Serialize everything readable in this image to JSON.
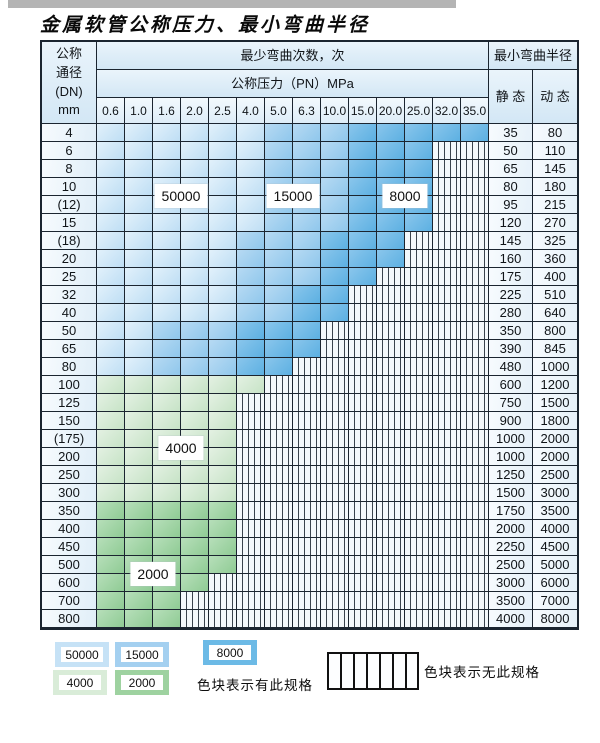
{
  "title": "金属软管公称压力、最小弯曲半径",
  "table": {
    "corner_header": "公称\n通径\n(DN)\nmm",
    "cycles_header": "最少弯曲次数，次",
    "pressure_header": "公称压力（PN）MPa",
    "radius_header": "最小弯曲半径",
    "static_header": "静 态",
    "dynamic_header": "动 态"
  },
  "chart_data": {
    "type": "heatmap",
    "title": "金属软管公称压力、最小弯曲半径",
    "x_label": "公称压力（PN）MPa",
    "y_label": "公称通径(DN) mm",
    "value_label": "最少弯曲次数，次",
    "pressure_columns": [
      "0.6",
      "1.0",
      "1.6",
      "2.0",
      "2.5",
      "4.0",
      "5.0",
      "6.3",
      "10.0",
      "15.0",
      "20.0",
      "25.0",
      "32.0",
      "35.0"
    ],
    "code_meaning": {
      "A": 50000,
      "B": 15000,
      "C": 8000,
      "D": 4000,
      "E": 2000,
      "X": "无此规格"
    },
    "rows": [
      {
        "dn": "4",
        "cells": "AAAAAABBBCCCCC",
        "static": "35",
        "dynamic": "80"
      },
      {
        "dn": "6",
        "cells": "AAAAAABBBCCCXX",
        "static": "50",
        "dynamic": "110"
      },
      {
        "dn": "8",
        "cells": "AAAAAABBBCCCXX",
        "static": "65",
        "dynamic": "145"
      },
      {
        "dn": "10",
        "cells": "AAAAAABBBCCCXX",
        "static": "80",
        "dynamic": "180"
      },
      {
        "dn": "(12)",
        "cells": "AAAAAABBBCCCXX",
        "static": "95",
        "dynamic": "215"
      },
      {
        "dn": "15",
        "cells": "AAAAAABBBCCCXX",
        "static": "120",
        "dynamic": "270"
      },
      {
        "dn": "(18)",
        "cells": "AAAAABBBCCCXXX",
        "static": "145",
        "dynamic": "325"
      },
      {
        "dn": "20",
        "cells": "AAAAABBBCCCXXX",
        "static": "160",
        "dynamic": "360"
      },
      {
        "dn": "25",
        "cells": "AAAAABBBCCXXXX",
        "static": "175",
        "dynamic": "400"
      },
      {
        "dn": "32",
        "cells": "AAAAABBCCXXXXX",
        "static": "225",
        "dynamic": "510"
      },
      {
        "dn": "40",
        "cells": "AAAAABBCCXXXXX",
        "static": "280",
        "dynamic": "640"
      },
      {
        "dn": "50",
        "cells": "AABBBCCCXXXXXX",
        "static": "350",
        "dynamic": "800"
      },
      {
        "dn": "65",
        "cells": "AABBBCCCXXXXXX",
        "static": "390",
        "dynamic": "845"
      },
      {
        "dn": "80",
        "cells": "AABBBCCXXXXXXX",
        "static": "480",
        "dynamic": "1000"
      },
      {
        "dn": "100",
        "cells": "DDDDDDXXXXXXXX",
        "static": "600",
        "dynamic": "1200"
      },
      {
        "dn": "125",
        "cells": "DDDDDXXXXXXXXX",
        "static": "750",
        "dynamic": "1500"
      },
      {
        "dn": "150",
        "cells": "DDDDDXXXXXXXXX",
        "static": "900",
        "dynamic": "1800"
      },
      {
        "dn": "(175)",
        "cells": "DDDDDXXXXXXXXX",
        "static": "1000",
        "dynamic": "2000"
      },
      {
        "dn": "200",
        "cells": "DDDDDXXXXXXXXX",
        "static": "1000",
        "dynamic": "2000"
      },
      {
        "dn": "250",
        "cells": "DDDDDXXXXXXXXX",
        "static": "1250",
        "dynamic": "2500"
      },
      {
        "dn": "300",
        "cells": "DDDDDXXXXXXXXX",
        "static": "1500",
        "dynamic": "3000"
      },
      {
        "dn": "350",
        "cells": "EEEEEXXXXXXXXX",
        "static": "1750",
        "dynamic": "3500"
      },
      {
        "dn": "400",
        "cells": "EEEEEXXXXXXXXX",
        "static": "2000",
        "dynamic": "4000"
      },
      {
        "dn": "450",
        "cells": "EEEEEXXXXXXXXX",
        "static": "2250",
        "dynamic": "4500"
      },
      {
        "dn": "500",
        "cells": "EEEEEXXXXXXXXX",
        "static": "2500",
        "dynamic": "5000"
      },
      {
        "dn": "600",
        "cells": "EEEEXXXXXXXXXX",
        "static": "3000",
        "dynamic": "6000"
      },
      {
        "dn": "700",
        "cells": "EEEXXXXXXXXXXX",
        "static": "3500",
        "dynamic": "7000"
      },
      {
        "dn": "800",
        "cells": "EEEXXXXXXXXXXX",
        "static": "4000",
        "dynamic": "8000"
      }
    ],
    "cycle_labels": [
      {
        "text": "50000",
        "col_span": [
          2,
          3
        ],
        "row_boundary": 4
      },
      {
        "text": "15000",
        "col_span": [
          6,
          7
        ],
        "row_boundary": 4
      },
      {
        "text": "8000",
        "col_span": [
          10,
          11
        ],
        "row_boundary": 4
      },
      {
        "text": "4000",
        "col_span": [
          2,
          3
        ],
        "row_boundary": 18
      },
      {
        "text": "2000",
        "col_span": [
          1,
          2
        ],
        "row_boundary": 25
      }
    ]
  },
  "legend": {
    "series": [
      {
        "label": "50000",
        "code": "A",
        "color": "#c6e2f6"
      },
      {
        "label": "15000",
        "code": "B",
        "color": "#a4d0f0"
      },
      {
        "label": "8000",
        "code": "C",
        "color": "#6cbae6"
      },
      {
        "label": "4000",
        "code": "D",
        "color": "#d9ecd8"
      },
      {
        "label": "2000",
        "code": "E",
        "color": "#9ed2a0"
      }
    ],
    "has_spec_note": "色块表示有此规格",
    "no_spec_note": "色块表示无此规格"
  }
}
